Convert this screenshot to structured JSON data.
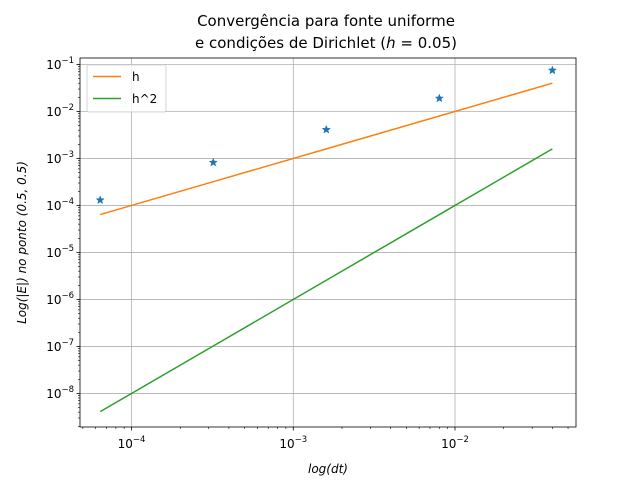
{
  "chart_data": {
    "type": "line",
    "title_line1": "Convergência para fonte uniforme",
    "title_line2": "e condições de Dirichlet (",
    "title_h": "h",
    "title_rest": " = 0.05)",
    "xlabel": "log(dt)",
    "ylabel_pre": "Log(",
    "ylabel_mid": "|E|",
    "ylabel_post": ") no ponto (0.5, 0.5)",
    "xscale": "log",
    "yscale": "log",
    "xlim": [
      4.8e-05,
      0.056
    ],
    "ylim": [
      1.93e-09,
      0.1373
    ],
    "grid": true,
    "legend_position": "upper-left",
    "x_ticks": [
      {
        "value": 0.0001,
        "base": "10",
        "exp": "−4"
      },
      {
        "value": 0.001,
        "base": "10",
        "exp": "−3"
      },
      {
        "value": 0.01,
        "base": "10",
        "exp": "−2"
      }
    ],
    "y_ticks": [
      {
        "value": 1e-08,
        "base": "10",
        "exp": "−8"
      },
      {
        "value": 1e-07,
        "base": "10",
        "exp": "−7"
      },
      {
        "value": 1e-06,
        "base": "10",
        "exp": "−6"
      },
      {
        "value": 1e-05,
        "base": "10",
        "exp": "−5"
      },
      {
        "value": 0.0001,
        "base": "10",
        "exp": "−4"
      },
      {
        "value": 0.001,
        "base": "10",
        "exp": "−3"
      },
      {
        "value": 0.01,
        "base": "10",
        "exp": "−2"
      },
      {
        "value": 0.1,
        "base": "10",
        "exp": "−1"
      }
    ],
    "x": [
      6.4e-05,
      0.00032,
      0.0016,
      0.008,
      0.04
    ],
    "error_points": {
      "color": "#1f77b4",
      "marker": "star",
      "values": [
        0.00013,
        0.00082,
        0.0041,
        0.019,
        0.075
      ]
    },
    "series": [
      {
        "name": "h",
        "color": "#ff7f0e",
        "values": [
          6.4e-05,
          0.00032,
          0.0016,
          0.008,
          0.04
        ]
      },
      {
        "name": "h^2",
        "color": "#2ca02c",
        "values": [
          4.1e-09,
          1.02e-07,
          2.56e-06,
          6.4e-05,
          0.0016
        ]
      }
    ]
  }
}
